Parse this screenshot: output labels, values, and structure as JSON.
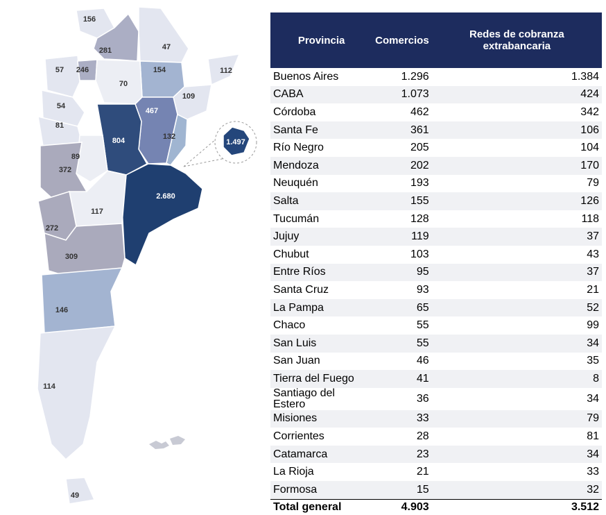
{
  "map": {
    "regions": [
      {
        "name": "Jujuy",
        "label": "156",
        "color": "#e3e6f0"
      },
      {
        "name": "Salta",
        "label": "281",
        "color": "#abaec4"
      },
      {
        "name": "Formosa",
        "label": "47",
        "color": "#e3e6f0"
      },
      {
        "name": "Chaco",
        "label": "154",
        "color": "#a3b4d1"
      },
      {
        "name": "Misiones",
        "label": "112",
        "color": "#e3e6f0"
      },
      {
        "name": "Catamarca",
        "label": "57",
        "color": "#e3e6f0"
      },
      {
        "name": "Tucumán",
        "label": "246",
        "color": "#abaec4"
      },
      {
        "name": "Santiago del Estero",
        "label": "70",
        "color": "#eceef4"
      },
      {
        "name": "Corrientes",
        "label": "109",
        "color": "#e3e6f0"
      },
      {
        "name": "La Rioja",
        "label": "54",
        "color": "#e3e6f0"
      },
      {
        "name": "Santa Fe",
        "label": "467",
        "color": "#7584b2"
      },
      {
        "name": "San Juan",
        "label": "81",
        "color": "#e3e6f0"
      },
      {
        "name": "Córdoba",
        "label": "804",
        "color": "#2f4c7c"
      },
      {
        "name": "Entre Ríos",
        "label": "132",
        "color": "#a0b5d1"
      },
      {
        "name": "San Luis",
        "label": "89",
        "color": "#eceef4"
      },
      {
        "name": "Mendoza",
        "label": "372",
        "color": "#aaaabc"
      },
      {
        "name": "Buenos Aires",
        "label": "2.680",
        "color": "#1f3f70"
      },
      {
        "name": "La Pampa",
        "label": "117",
        "color": "#eceef4"
      },
      {
        "name": "Neuquén",
        "label": "272",
        "color": "#aaaabc"
      },
      {
        "name": "Río Negro",
        "label": "309",
        "color": "#aaaabc"
      },
      {
        "name": "Chubut",
        "label": "146",
        "color": "#a3b4d1"
      },
      {
        "name": "Santa Cruz",
        "label": "114",
        "color": "#e3e6f0"
      },
      {
        "name": "Tierra del Fuego",
        "label": "49",
        "color": "#e3e6f0"
      },
      {
        "name": "CABA",
        "label": "1.497",
        "color": "#24467b"
      }
    ]
  },
  "table": {
    "header": [
      "Provincia",
      "Comercios",
      "Redes de cobranza extrabancaria"
    ],
    "rows": [
      [
        "Buenos Aires",
        "1.296",
        "1.384"
      ],
      [
        "CABA",
        "1.073",
        "424"
      ],
      [
        "Córdoba",
        "462",
        "342"
      ],
      [
        "Santa Fe",
        "361",
        "106"
      ],
      [
        "Río Negro",
        "205",
        "104"
      ],
      [
        "Mendoza",
        "202",
        "170"
      ],
      [
        "Neuquén",
        "193",
        "79"
      ],
      [
        "Salta",
        "155",
        "126"
      ],
      [
        "Tucumán",
        "128",
        "118"
      ],
      [
        "Jujuy",
        "119",
        "37"
      ],
      [
        "Chubut",
        "103",
        "43"
      ],
      [
        "Entre Ríos",
        "95",
        "37"
      ],
      [
        "Santa Cruz",
        "93",
        "21"
      ],
      [
        "La Pampa",
        "65",
        "52"
      ],
      [
        "Chaco",
        "55",
        "99"
      ],
      [
        "San Luis",
        "55",
        "34"
      ],
      [
        "San Juan",
        "46",
        "35"
      ],
      [
        "Tierra del Fuego",
        "41",
        "8"
      ],
      [
        "Santiago del Estero",
        "36",
        "34"
      ],
      [
        "Misiones",
        "33",
        "79"
      ],
      [
        "Corrientes",
        "28",
        "81"
      ],
      [
        "Catamarca",
        "23",
        "34"
      ],
      [
        "La Rioja",
        "21",
        "33"
      ],
      [
        "Formosa",
        "15",
        "32"
      ]
    ],
    "total": [
      "Total general",
      "4.903",
      "3.512"
    ]
  }
}
